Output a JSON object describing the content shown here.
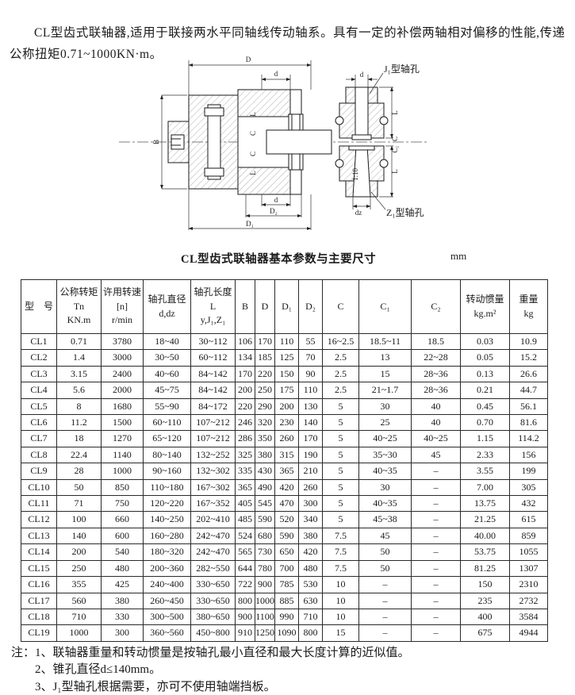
{
  "intro": "CL型齿式联轴器,适用于联接两水平同轴线传动轴系。具有一定的补偿两轴相对偏移的性能,传递公称扭矩0.71~1000KN·m。",
  "diagram": {
    "main_view": {
      "dim_D": "D",
      "dim_d_top": "d",
      "dim_B": "B",
      "dim_L_upper": "L",
      "dim_C_upper": "C",
      "dim_C_lower": "C",
      "dim_L_lower": "L",
      "dim_d_bottom": "d",
      "dim_D2": "D₂",
      "dim_D1": "D₁"
    },
    "side_view": {
      "label_j1": "J₁型轴孔",
      "label_z1": "Z₁型轴孔",
      "dim_d": "d",
      "dim_L_upper": "L",
      "dim_C": "C",
      "dim_C1": "C₁",
      "dim_L_lower": "L",
      "dim_dz": "dz",
      "taper": "1:10"
    }
  },
  "table": {
    "title": "CL型齿式联轴器基本参数与主要尺寸",
    "unit": "mm",
    "headers": [
      "型　号",
      "公称转矩\nTn\nKN.m",
      "许用转速\n[n]\nr/min",
      "轴孔直径\nd,dz",
      "轴孔长度\nL\ny,J₁,Z₁",
      "B",
      "D",
      "D₁",
      "D₂",
      "C",
      "C₁",
      "C₂",
      "转动惯量\nkg.m²",
      "重量\nkg"
    ],
    "rows": [
      [
        "CL1",
        "0.71",
        "3780",
        "18~40",
        "30~112",
        "106",
        "170",
        "110",
        "55",
        "16~2.5",
        "18.5~11",
        "18.5",
        "0.03",
        "10.9"
      ],
      [
        "CL2",
        "1.4",
        "3000",
        "30~50",
        "60~112",
        "134",
        "185",
        "125",
        "70",
        "2.5",
        "13",
        "22~28",
        "0.05",
        "15.2"
      ],
      [
        "CL3",
        "3.15",
        "2400",
        "40~60",
        "84~142",
        "170",
        "220",
        "150",
        "90",
        "2.5",
        "15",
        "28~36",
        "0.13",
        "26.6"
      ],
      [
        "CL4",
        "5.6",
        "2000",
        "45~75",
        "84~142",
        "200",
        "250",
        "175",
        "110",
        "2.5",
        "21~1.7",
        "28~36",
        "0.21",
        "44.7"
      ],
      [
        "CL5",
        "8",
        "1680",
        "55~90",
        "84~172",
        "220",
        "290",
        "200",
        "130",
        "5",
        "30",
        "40",
        "0.45",
        "56.1"
      ],
      [
        "CL6",
        "11.2",
        "1500",
        "60~110",
        "107~212",
        "246",
        "320",
        "230",
        "140",
        "5",
        "25",
        "40",
        "0.70",
        "81.6"
      ],
      [
        "CL7",
        "18",
        "1270",
        "65~120",
        "107~212",
        "286",
        "350",
        "260",
        "170",
        "5",
        "40~25",
        "40~25",
        "1.15",
        "114.2"
      ],
      [
        "CL8",
        "22.4",
        "1140",
        "80~140",
        "132~252",
        "325",
        "380",
        "315",
        "190",
        "5",
        "35~30",
        "45",
        "2.33",
        "156"
      ],
      [
        "CL9",
        "28",
        "1000",
        "90~160",
        "132~302",
        "335",
        "430",
        "365",
        "210",
        "5",
        "40~35",
        "–",
        "3.55",
        "199"
      ],
      [
        "CL10",
        "50",
        "850",
        "110~180",
        "167~302",
        "365",
        "490",
        "420",
        "260",
        "5",
        "30",
        "–",
        "7.00",
        "305"
      ],
      [
        "CL11",
        "71",
        "750",
        "120~220",
        "167~352",
        "405",
        "545",
        "470",
        "300",
        "5",
        "40~35",
        "–",
        "13.75",
        "432"
      ],
      [
        "CL12",
        "100",
        "660",
        "140~250",
        "202~410",
        "485",
        "590",
        "520",
        "340",
        "5",
        "45~38",
        "–",
        "21.25",
        "615"
      ],
      [
        "CL13",
        "140",
        "600",
        "160~280",
        "242~470",
        "524",
        "680",
        "590",
        "380",
        "7.5",
        "45",
        "–",
        "40.00",
        "859"
      ],
      [
        "CL14",
        "200",
        "540",
        "180~320",
        "242~470",
        "565",
        "730",
        "650",
        "420",
        "7.5",
        "50",
        "–",
        "53.75",
        "1055"
      ],
      [
        "CL15",
        "250",
        "480",
        "200~360",
        "282~550",
        "644",
        "780",
        "700",
        "480",
        "7.5",
        "50",
        "–",
        "81.25",
        "1307"
      ],
      [
        "CL16",
        "355",
        "425",
        "240~400",
        "330~650",
        "722",
        "900",
        "785",
        "530",
        "10",
        "–",
        "–",
        "150",
        "2310"
      ],
      [
        "CL17",
        "560",
        "380",
        "260~450",
        "330~650",
        "800",
        "1000",
        "885",
        "630",
        "10",
        "–",
        "–",
        "235",
        "2732"
      ],
      [
        "CL18",
        "710",
        "330",
        "300~500",
        "380~650",
        "900",
        "1100",
        "990",
        "710",
        "10",
        "–",
        "–",
        "400",
        "3584"
      ],
      [
        "CL19",
        "1000",
        "300",
        "360~560",
        "450~800",
        "910",
        "1250",
        "1090",
        "800",
        "15",
        "–",
        "–",
        "675",
        "4944"
      ]
    ]
  },
  "notes": {
    "prefix": "注：",
    "items": [
      "1、联轴器重量和转动惯量是按轴孔最小直径和最大长度计算的近似值。",
      "2、锥孔直径d≤140mm。",
      "3、J₁型轴孔根据需要，亦可不使用轴端挡板。"
    ]
  }
}
